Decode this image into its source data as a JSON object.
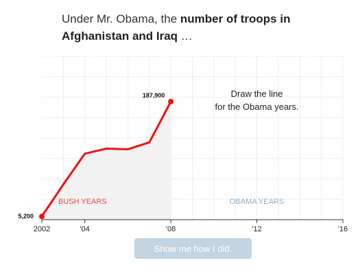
{
  "headline": {
    "lead": "Under Mr. Obama, the ",
    "bold": "number of troops in Afghanistan and Iraq",
    "tail": " …"
  },
  "chart_data": {
    "type": "line",
    "x": [
      2002,
      2003,
      2004,
      2005,
      2006,
      2007,
      2008
    ],
    "values": [
      5200,
      56000,
      105000,
      113000,
      112000,
      123000,
      187900
    ],
    "xlim": [
      2002,
      2016
    ],
    "ylim": [
      0,
      260000
    ],
    "x_ticks": [
      {
        "value": 2002,
        "label": "2002"
      },
      {
        "value": 2004,
        "label": "'04"
      },
      {
        "value": 2008,
        "label": "'08"
      },
      {
        "value": 2012,
        "label": "'12"
      },
      {
        "value": 2016,
        "label": "'16"
      }
    ],
    "data_labels": {
      "start": "5,200",
      "end": "187,900"
    },
    "regions": {
      "bush": "BUSH YEARS",
      "obama": "OBAMA YEARS"
    },
    "prompt_lines": [
      "Draw the line",
      "for the Obama years."
    ],
    "grid": true,
    "line_color": "#ee1111",
    "bush_label_color": "#e0504a",
    "obama_label_color": "#8fb0cc"
  },
  "button": {
    "label": "Show me how I did."
  }
}
